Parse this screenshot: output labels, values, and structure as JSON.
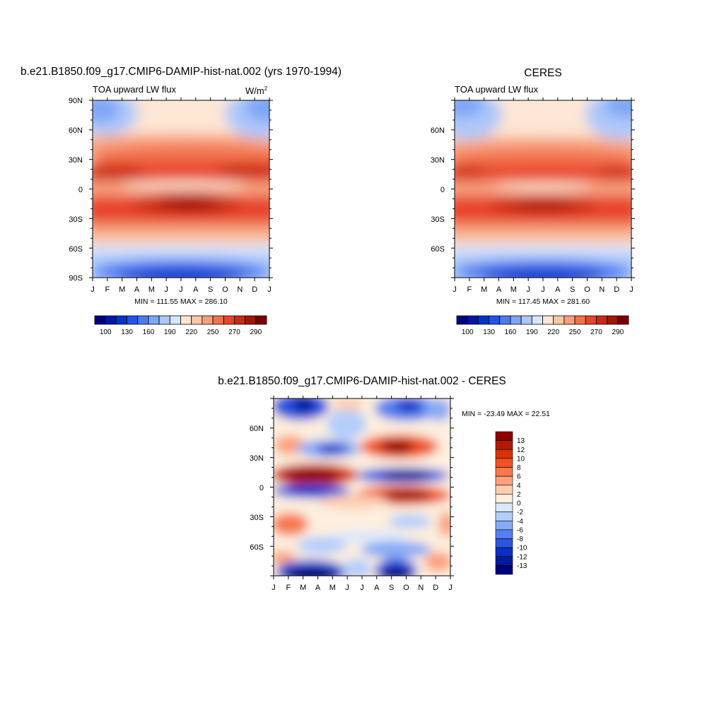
{
  "panels": [
    {
      "title": "b.e21.B1850.f09_g17.CMIP6-DAMIP-hist-nat.002 (yrs 1970-1994)",
      "left_label": "TOA upward LW flux",
      "units": "W/m",
      "units_superscript": "2",
      "stats": "MIN = 111.55 MAX = 286.10",
      "ylabels": [
        "90N",
        "60N",
        "30N",
        "0",
        "30S",
        "60S",
        "90S"
      ],
      "xlabels": [
        "J",
        "F",
        "M",
        "A",
        "M",
        "J",
        "J",
        "A",
        "S",
        "O",
        "N",
        "D",
        "J"
      ],
      "colorbar_labels": [
        "100",
        "130",
        "160",
        "190",
        "220",
        "250",
        "270",
        "290"
      ]
    },
    {
      "title": "CERES",
      "left_label": "TOA upward LW flux",
      "units": "",
      "units_superscript": "",
      "stats": "MIN = 117.45 MAX = 281.60",
      "ylabels": [
        "60N",
        "30N",
        "0",
        "30S",
        "60S"
      ],
      "xlabels": [
        "J",
        "F",
        "M",
        "A",
        "M",
        "J",
        "J",
        "A",
        "S",
        "O",
        "N",
        "D",
        "J"
      ],
      "colorbar_labels": [
        "100",
        "130",
        "160",
        "190",
        "220",
        "250",
        "270",
        "290"
      ]
    },
    {
      "title": "b.e21.B1850.f09_g17.CMIP6-DAMIP-hist-nat.002 - CERES",
      "stats": "MIN = -23.49 MAX =  22.51",
      "ylabels": [
        "60N",
        "30N",
        "0",
        "30S",
        "60S"
      ],
      "xlabels": [
        "J",
        "F",
        "M",
        "A",
        "M",
        "J",
        "J",
        "A",
        "S",
        "O",
        "N",
        "D",
        "J"
      ],
      "colorbar_labels": [
        "13",
        "12",
        "10",
        "8",
        "6",
        "4",
        "2",
        "0",
        "-2",
        "-4",
        "-6",
        "-8",
        "-10",
        "-12",
        "-13"
      ]
    }
  ],
  "colors": {
    "abs_scale": [
      "#00007f",
      "#0018a8",
      "#0033cc",
      "#2255e6",
      "#4a7cf0",
      "#7ea4f5",
      "#adc8fa",
      "#d6e6fc",
      "#fde6d4",
      "#fbc7a8",
      "#f79f7c",
      "#f2714e",
      "#e8452a",
      "#cc2a10",
      "#a11508",
      "#7a0000"
    ],
    "diff_scale": [
      "#8c0000",
      "#b51a00",
      "#d93300",
      "#f05222",
      "#f7784d",
      "#fba27c",
      "#fdcdb0",
      "#fdeede",
      "#dbe8fc",
      "#b4cefa",
      "#86aaf5",
      "#5580ef",
      "#2b55e0",
      "#0b2ec4",
      "#001a9c",
      "#00007a"
    ]
  },
  "chart_data": [
    {
      "type": "heatmap",
      "title": "b.e21.B1850.f09_g17.CMIP6-DAMIP-hist-nat.002 (yrs 1970-1994)",
      "variable": "TOA upward LW flux",
      "units": "W/m2",
      "x": [
        "J",
        "F",
        "M",
        "A",
        "M",
        "J",
        "J",
        "A",
        "S",
        "O",
        "N",
        "D",
        "J"
      ],
      "y": [
        "90N",
        "60N",
        "30N",
        "0",
        "30S",
        "60S",
        "90S"
      ],
      "levels": [
        100,
        130,
        160,
        190,
        220,
        250,
        270,
        290
      ],
      "min": 111.55,
      "max": 286.1
    },
    {
      "type": "heatmap",
      "title": "CERES",
      "variable": "TOA upward LW flux",
      "x": [
        "J",
        "F",
        "M",
        "A",
        "M",
        "J",
        "J",
        "A",
        "S",
        "O",
        "N",
        "D",
        "J"
      ],
      "y": [
        "60N",
        "30N",
        "0",
        "30S",
        "60S"
      ],
      "levels": [
        100,
        130,
        160,
        190,
        220,
        250,
        270,
        290
      ],
      "min": 117.45,
      "max": 281.6
    },
    {
      "type": "heatmap",
      "title": "b.e21.B1850.f09_g17.CMIP6-DAMIP-hist-nat.002 - CERES",
      "x": [
        "J",
        "F",
        "M",
        "A",
        "M",
        "J",
        "J",
        "A",
        "S",
        "O",
        "N",
        "D",
        "J"
      ],
      "y": [
        "60N",
        "30N",
        "0",
        "30S",
        "60S"
      ],
      "levels": [
        13,
        12,
        10,
        8,
        6,
        4,
        2,
        0,
        -2,
        -4,
        -6,
        -8,
        -10,
        -12,
        -13
      ],
      "min": -23.49,
      "max": 22.51
    }
  ]
}
